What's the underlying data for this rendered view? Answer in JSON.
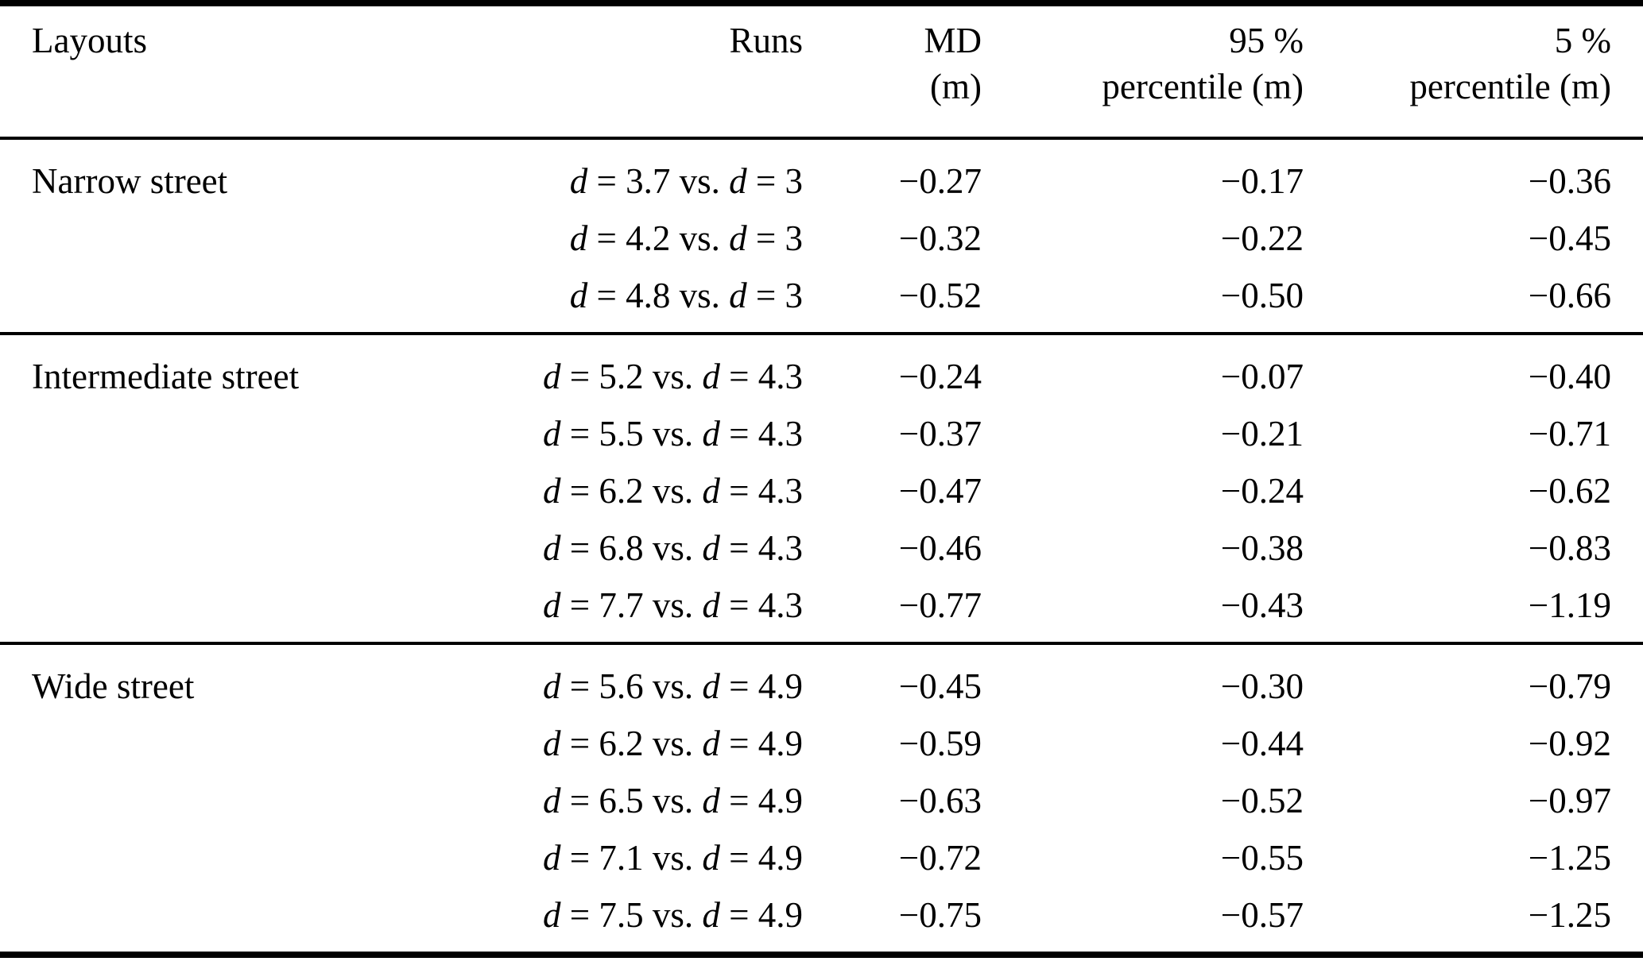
{
  "colors": {
    "text": "#000000",
    "background": "#ffffff",
    "rule": "#000000"
  },
  "table": {
    "columns": [
      {
        "id": "layouts",
        "label": "Layouts",
        "label2": ""
      },
      {
        "id": "runs",
        "label": "Runs",
        "label2": ""
      },
      {
        "id": "md",
        "label": "MD",
        "label2": "(m)"
      },
      {
        "id": "p95",
        "label": "95 %",
        "label2": "percentile (m)"
      },
      {
        "id": "p5",
        "label": "5 %",
        "label2": "percentile (m)"
      }
    ],
    "sections": [
      {
        "layout": "Narrow street",
        "rows": [
          {
            "run": "d = 3.7 vs. d = 3",
            "md": "−0.27",
            "p95": "−0.17",
            "p5": "−0.36"
          },
          {
            "run": "d = 4.2 vs. d = 3",
            "md": "−0.32",
            "p95": "−0.22",
            "p5": "−0.45"
          },
          {
            "run": "d = 4.8 vs. d = 3",
            "md": "−0.52",
            "p95": "−0.50",
            "p5": "−0.66"
          }
        ]
      },
      {
        "layout": "Intermediate street",
        "rows": [
          {
            "run": "d = 5.2 vs. d = 4.3",
            "md": "−0.24",
            "p95": "−0.07",
            "p5": "−0.40"
          },
          {
            "run": "d = 5.5 vs. d = 4.3",
            "md": "−0.37",
            "p95": "−0.21",
            "p5": "−0.71"
          },
          {
            "run": "d = 6.2 vs. d = 4.3",
            "md": "−0.47",
            "p95": "−0.24",
            "p5": "−0.62"
          },
          {
            "run": "d = 6.8 vs. d = 4.3",
            "md": "−0.46",
            "p95": "−0.38",
            "p5": "−0.83"
          },
          {
            "run": "d = 7.7 vs. d = 4.3",
            "md": "−0.77",
            "p95": "−0.43",
            "p5": "−1.19"
          }
        ]
      },
      {
        "layout": "Wide street",
        "rows": [
          {
            "run": "d = 5.6 vs. d = 4.9",
            "md": "−0.45",
            "p95": "−0.30",
            "p5": "−0.79"
          },
          {
            "run": "d = 6.2 vs. d = 4.9",
            "md": "−0.59",
            "p95": "−0.44",
            "p5": "−0.92"
          },
          {
            "run": "d = 6.5 vs. d = 4.9",
            "md": "−0.63",
            "p95": "−0.52",
            "p5": "−0.97"
          },
          {
            "run": "d = 7.1 vs. d = 4.9",
            "md": "−0.72",
            "p95": "−0.55",
            "p5": "−1.25"
          },
          {
            "run": "d = 7.5 vs. d = 4.9",
            "md": "−0.75",
            "p95": "−0.57",
            "p5": "−1.25"
          }
        ]
      }
    ]
  }
}
